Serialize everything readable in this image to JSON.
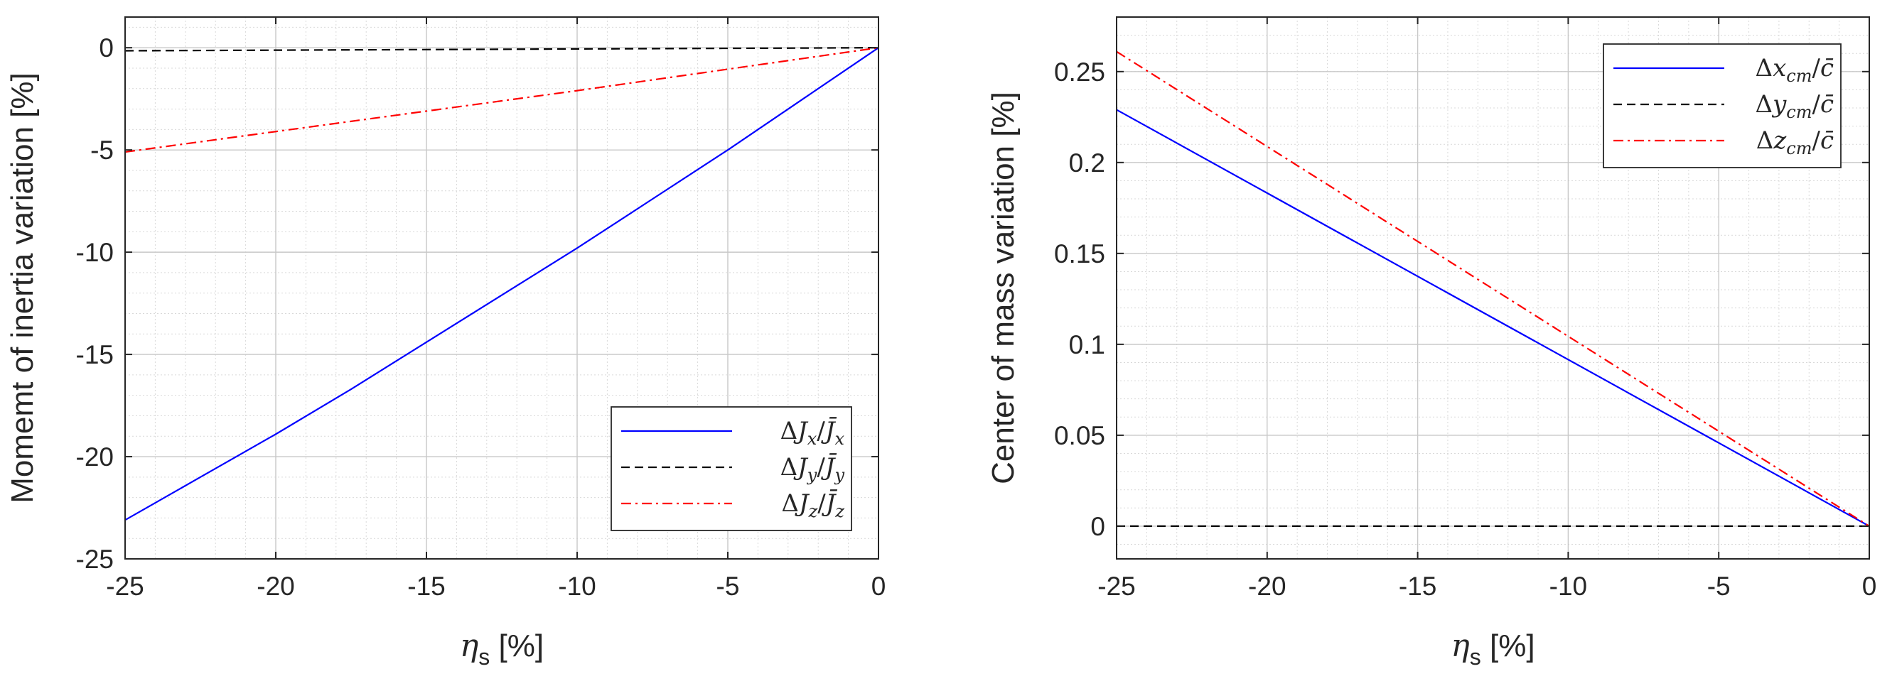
{
  "chart_data": [
    {
      "type": "line",
      "xlabel": "ηs [%]",
      "ylabel": "Momemt of inertia variation [%]",
      "xlim": [
        -25,
        0
      ],
      "ylim": [
        -25,
        1.5
      ],
      "xticks": [
        "-25",
        "-20",
        "-15",
        "-10",
        "-5",
        "0"
      ],
      "yticks": [
        "0",
        "-5",
        "-10",
        "-15",
        "-20",
        "-25"
      ],
      "grid": true,
      "minor_grid": true,
      "legend_position": "bottom-right",
      "series": [
        {
          "name": "ΔJx/J̄x",
          "color": "#0000ff",
          "style": "solid",
          "x": [
            -25,
            -22.5,
            -20,
            -17.5,
            -15,
            -12.5,
            -10,
            -7.5,
            -5,
            -2.5,
            0
          ],
          "y": [
            -23.1,
            -21.0,
            -18.9,
            -16.7,
            -14.4,
            -12.1,
            -9.8,
            -7.4,
            -5.0,
            -2.5,
            0
          ]
        },
        {
          "name": "ΔJy/J̄y",
          "color": "#000000",
          "style": "dashed",
          "x": [
            -25,
            0
          ],
          "y": [
            -0.15,
            0
          ]
        },
        {
          "name": "ΔJz/J̄z",
          "color": "#ff0000",
          "style": "dashdot",
          "x": [
            -25,
            -20,
            -15,
            -10,
            -5,
            0
          ],
          "y": [
            -5.1,
            -4.1,
            -3.1,
            -2.1,
            -1.05,
            0
          ]
        }
      ]
    },
    {
      "type": "line",
      "xlabel": "ηs [%]",
      "ylabel": "Center of mass variation [%]",
      "xlim": [
        -25,
        0
      ],
      "ylim": [
        -0.018,
        0.28
      ],
      "xticks": [
        "-25",
        "-20",
        "-15",
        "-10",
        "-5",
        "0"
      ],
      "yticks": [
        "0",
        "0.05",
        "0.1",
        "0.15",
        "0.2",
        "0.25"
      ],
      "grid": true,
      "minor_grid": true,
      "legend_position": "top-right",
      "series": [
        {
          "name": "Δxcm/c̄",
          "color": "#0000ff",
          "style": "solid",
          "x": [
            -25,
            0
          ],
          "y": [
            0.229,
            0
          ]
        },
        {
          "name": "Δycm/c̄",
          "color": "#000000",
          "style": "dashed",
          "x": [
            -25,
            0
          ],
          "y": [
            0,
            0
          ]
        },
        {
          "name": "Δzcm/c̄",
          "color": "#ff0000",
          "style": "dashdot",
          "x": [
            -25,
            0
          ],
          "y": [
            0.261,
            0
          ]
        }
      ]
    }
  ]
}
